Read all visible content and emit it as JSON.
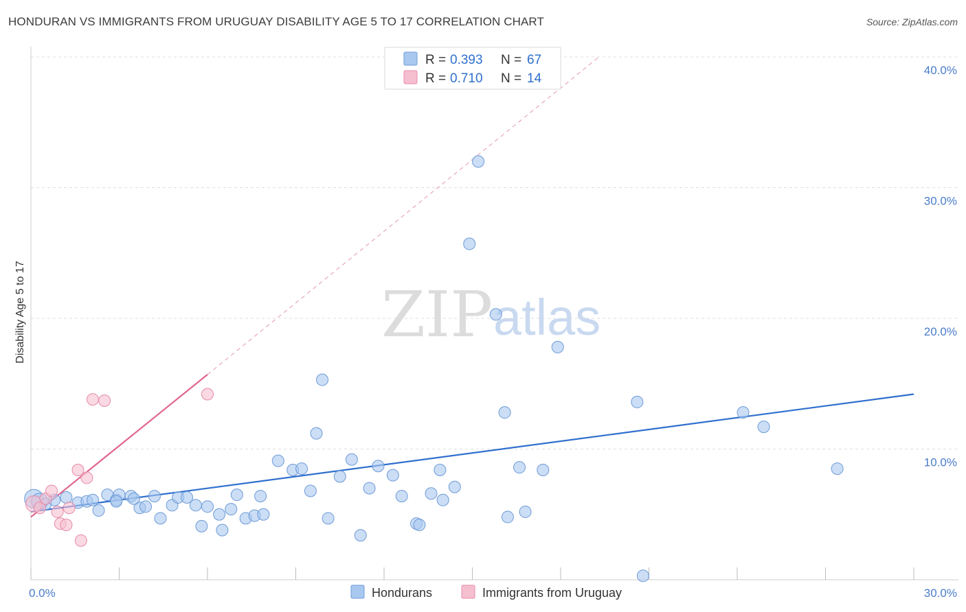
{
  "title": "HONDURAN VS IMMIGRANTS FROM URUGUAY DISABILITY AGE 5 TO 17 CORRELATION CHART",
  "source": "Source: ZipAtlas.com",
  "watermark": {
    "zip": "ZIP",
    "atlas": "atlas"
  },
  "colors": {
    "blue_fill": "#a9c8f0",
    "blue_stroke": "#6d9ad6",
    "blue_line": "#2f6fce",
    "pink_fill": "#f6bfd0",
    "pink_stroke": "#e58aa8",
    "pink_line": "#e0648e",
    "grid": "#dddddd",
    "tick_text": "#4a7cc9"
  },
  "legend": {
    "r_label": "R =",
    "n_label": "N =",
    "rows": [
      {
        "series": "Hondurans",
        "r": "0.393",
        "n": "67"
      },
      {
        "series": "Immigrants from Uruguay",
        "r": "0.710",
        "n": "14"
      }
    ]
  },
  "chart_data": {
    "type": "scatter",
    "title": "HONDURAN VS IMMIGRANTS FROM URUGUAY DISABILITY AGE 5 TO 17 CORRELATION CHART",
    "xlabel": "",
    "ylabel": "Disability Age 5 to 17",
    "xlim": [
      0,
      30
    ],
    "ylim": [
      0,
      40
    ],
    "x_tick_labels": [
      "0.0%",
      "30.0%"
    ],
    "y_tick_labels": [
      {
        "value": 10,
        "label": "10.0%"
      },
      {
        "value": 20,
        "label": "20.0%"
      },
      {
        "value": 30,
        "label": "30.0%"
      },
      {
        "value": 40,
        "label": "40.0%"
      }
    ],
    "series": [
      {
        "name": "Hondurans",
        "color": "#a9c8f0",
        "trend": {
          "x": [
            0,
            30
          ],
          "y": [
            5.2,
            14.2
          ]
        },
        "points": [
          {
            "x": 0.1,
            "y": 6.2,
            "s": 1.6
          },
          {
            "x": 0.3,
            "y": 6.0,
            "s": 1.4
          },
          {
            "x": 0.5,
            "y": 5.8,
            "s": 1
          },
          {
            "x": 0.8,
            "y": 6.1,
            "s": 1
          },
          {
            "x": 1.2,
            "y": 6.3,
            "s": 1
          },
          {
            "x": 1.6,
            "y": 5.9,
            "s": 1
          },
          {
            "x": 1.9,
            "y": 6.0,
            "s": 1
          },
          {
            "x": 2.1,
            "y": 6.1,
            "s": 1
          },
          {
            "x": 2.3,
            "y": 5.3,
            "s": 1
          },
          {
            "x": 2.6,
            "y": 6.5,
            "s": 1
          },
          {
            "x": 2.9,
            "y": 6.1,
            "s": 1
          },
          {
            "x": 3.0,
            "y": 6.5,
            "s": 1
          },
          {
            "x": 3.4,
            "y": 6.4,
            "s": 1
          },
          {
            "x": 3.7,
            "y": 5.5,
            "s": 1
          },
          {
            "x": 3.9,
            "y": 5.6,
            "s": 1
          },
          {
            "x": 4.2,
            "y": 6.4,
            "s": 1
          },
          {
            "x": 4.4,
            "y": 4.7,
            "s": 1
          },
          {
            "x": 4.8,
            "y": 5.7,
            "s": 1
          },
          {
            "x": 5.0,
            "y": 6.3,
            "s": 1
          },
          {
            "x": 5.3,
            "y": 6.3,
            "s": 1
          },
          {
            "x": 5.6,
            "y": 5.7,
            "s": 1
          },
          {
            "x": 5.8,
            "y": 4.1,
            "s": 1
          },
          {
            "x": 6.0,
            "y": 5.6,
            "s": 1
          },
          {
            "x": 6.4,
            "y": 5.0,
            "s": 1
          },
          {
            "x": 6.5,
            "y": 3.8,
            "s": 1
          },
          {
            "x": 6.8,
            "y": 5.4,
            "s": 1
          },
          {
            "x": 7.0,
            "y": 6.5,
            "s": 1
          },
          {
            "x": 7.3,
            "y": 4.7,
            "s": 1
          },
          {
            "x": 7.6,
            "y": 4.9,
            "s": 1
          },
          {
            "x": 7.8,
            "y": 6.4,
            "s": 1
          },
          {
            "x": 7.9,
            "y": 5.0,
            "s": 1
          },
          {
            "x": 8.4,
            "y": 9.1,
            "s": 1
          },
          {
            "x": 8.9,
            "y": 8.4,
            "s": 1
          },
          {
            "x": 9.2,
            "y": 8.5,
            "s": 1
          },
          {
            "x": 9.5,
            "y": 6.8,
            "s": 1
          },
          {
            "x": 9.7,
            "y": 11.2,
            "s": 1
          },
          {
            "x": 9.9,
            "y": 15.3,
            "s": 1
          },
          {
            "x": 10.1,
            "y": 4.7,
            "s": 1
          },
          {
            "x": 10.5,
            "y": 7.9,
            "s": 1
          },
          {
            "x": 10.9,
            "y": 9.2,
            "s": 1
          },
          {
            "x": 11.2,
            "y": 3.4,
            "s": 1
          },
          {
            "x": 11.5,
            "y": 7.0,
            "s": 1
          },
          {
            "x": 11.8,
            "y": 8.7,
            "s": 1
          },
          {
            "x": 12.3,
            "y": 8.0,
            "s": 1
          },
          {
            "x": 12.6,
            "y": 6.4,
            "s": 1
          },
          {
            "x": 13.1,
            "y": 4.3,
            "s": 1
          },
          {
            "x": 13.2,
            "y": 4.2,
            "s": 1
          },
          {
            "x": 13.6,
            "y": 6.6,
            "s": 1
          },
          {
            "x": 13.9,
            "y": 8.4,
            "s": 1
          },
          {
            "x": 14.0,
            "y": 6.1,
            "s": 1
          },
          {
            "x": 14.4,
            "y": 7.1,
            "s": 1
          },
          {
            "x": 14.9,
            "y": 25.7,
            "s": 1
          },
          {
            "x": 15.2,
            "y": 32.0,
            "s": 1
          },
          {
            "x": 15.8,
            "y": 20.3,
            "s": 1
          },
          {
            "x": 16.1,
            "y": 12.8,
            "s": 1
          },
          {
            "x": 16.2,
            "y": 4.8,
            "s": 1
          },
          {
            "x": 16.6,
            "y": 8.6,
            "s": 1
          },
          {
            "x": 16.8,
            "y": 5.2,
            "s": 1
          },
          {
            "x": 17.4,
            "y": 8.4,
            "s": 1
          },
          {
            "x": 17.9,
            "y": 17.8,
            "s": 1
          },
          {
            "x": 20.6,
            "y": 13.6,
            "s": 1
          },
          {
            "x": 20.8,
            "y": 0.3,
            "s": 1
          },
          {
            "x": 24.2,
            "y": 12.8,
            "s": 1
          },
          {
            "x": 24.9,
            "y": 11.7,
            "s": 1
          },
          {
            "x": 27.4,
            "y": 8.5,
            "s": 1
          },
          {
            "x": 2.9,
            "y": 6.0,
            "s": 1
          },
          {
            "x": 3.5,
            "y": 6.2,
            "s": 1
          }
        ]
      },
      {
        "name": "Immigrants from Uruguay",
        "color": "#f6bfd0",
        "trend": {
          "x": [
            0,
            6.0
          ],
          "y": [
            4.8,
            15.7
          ]
        },
        "trend_extension": {
          "x": [
            6.0,
            19.3
          ],
          "y": [
            15.7,
            40.0
          ]
        },
        "points": [
          {
            "x": 0.1,
            "y": 5.8,
            "s": 1.4
          },
          {
            "x": 0.3,
            "y": 5.5,
            "s": 1
          },
          {
            "x": 0.5,
            "y": 6.2,
            "s": 1
          },
          {
            "x": 0.7,
            "y": 6.8,
            "s": 1
          },
          {
            "x": 0.9,
            "y": 5.2,
            "s": 1
          },
          {
            "x": 1.0,
            "y": 4.3,
            "s": 1
          },
          {
            "x": 1.2,
            "y": 4.2,
            "s": 1
          },
          {
            "x": 1.3,
            "y": 5.5,
            "s": 1
          },
          {
            "x": 1.6,
            "y": 8.4,
            "s": 1
          },
          {
            "x": 1.7,
            "y": 3.0,
            "s": 1
          },
          {
            "x": 1.9,
            "y": 7.8,
            "s": 1
          },
          {
            "x": 2.1,
            "y": 13.8,
            "s": 1
          },
          {
            "x": 2.5,
            "y": 13.7,
            "s": 1
          },
          {
            "x": 6.0,
            "y": 14.2,
            "s": 1
          }
        ]
      }
    ]
  }
}
